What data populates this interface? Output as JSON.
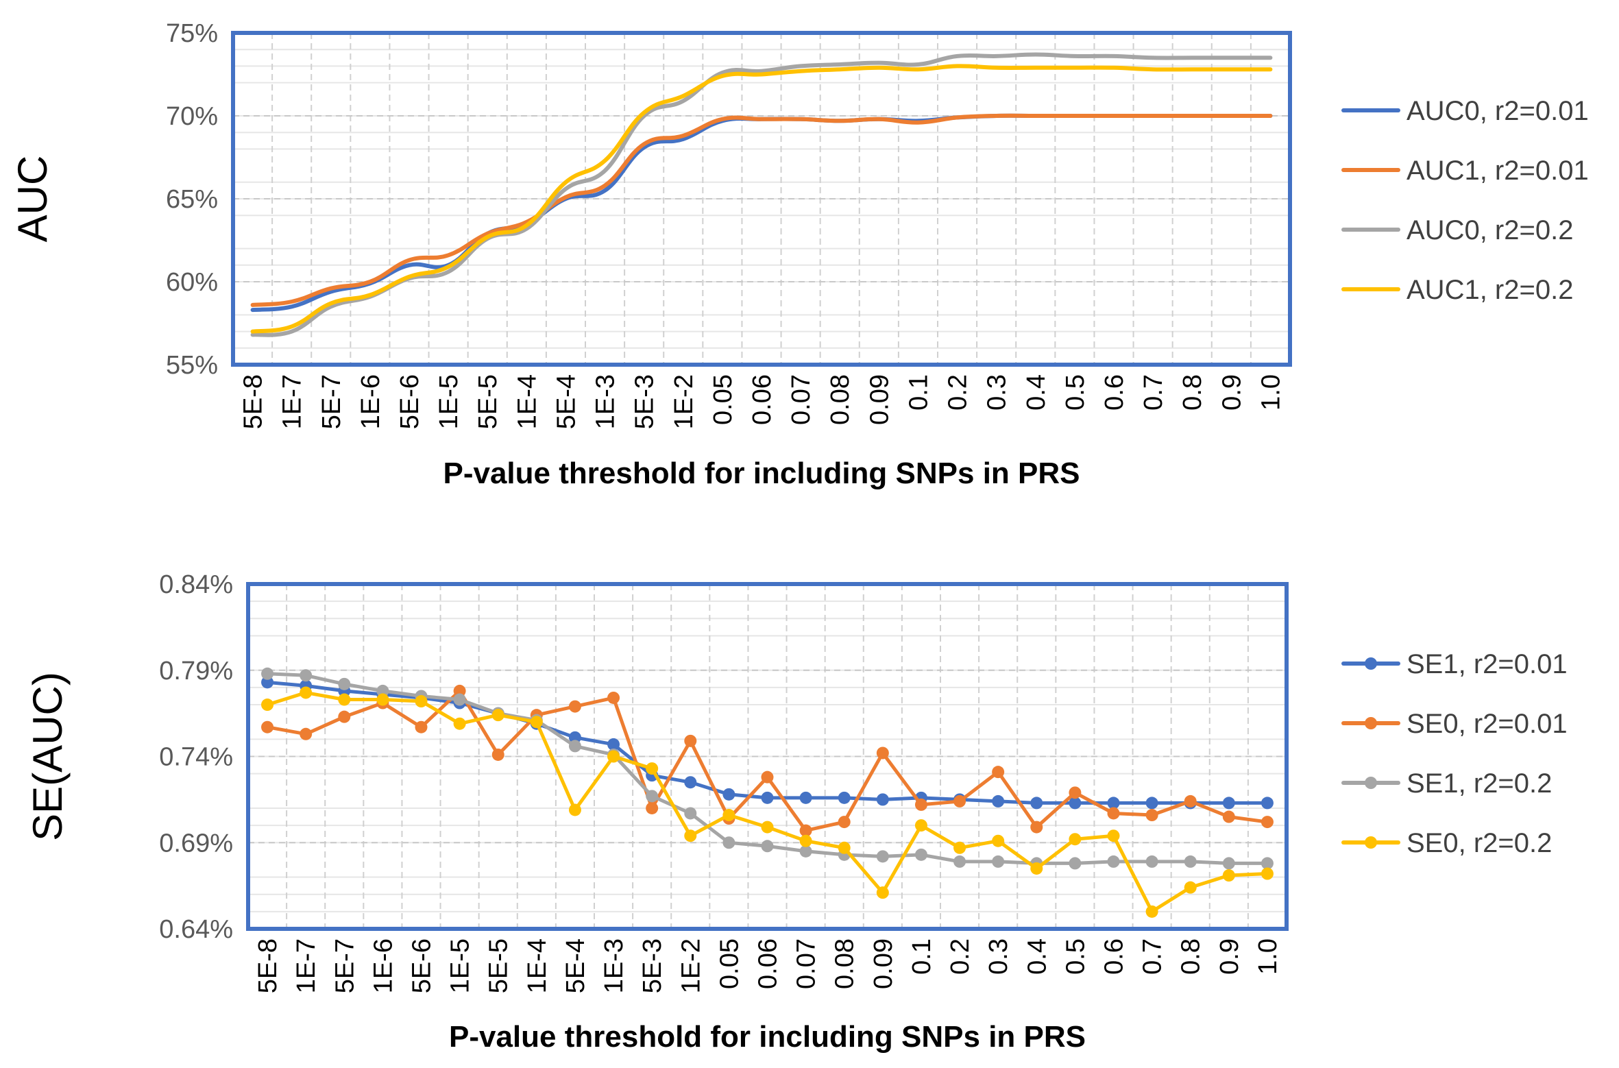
{
  "chart_data": [
    {
      "type": "line",
      "title": "",
      "xlabel": "P-value threshold for including SNPs in PRS",
      "ylabel": "AUC",
      "y_unit": "%",
      "ylim": [
        55,
        75
      ],
      "yticks": [
        55,
        60,
        65,
        70,
        75
      ],
      "ytick_labels": [
        "55%",
        "60%",
        "65%",
        "70%",
        "75%"
      ],
      "grid": true,
      "legend_position": "right",
      "markers": false,
      "categories": [
        "5E-8",
        "1E-7",
        "5E-7",
        "1E-6",
        "5E-6",
        "1E-5",
        "5E-5",
        "1E-4",
        "5E-4",
        "1E-3",
        "5E-3",
        "1E-2",
        "0.05",
        "0.06",
        "0.07",
        "0.08",
        "0.09",
        "0.1",
        "0.2",
        "0.3",
        "0.4",
        "0.5",
        "0.6",
        "0.7",
        "0.8",
        "0.9",
        "1.0"
      ],
      "series": [
        {
          "name": "AUC0, r2=0.01",
          "color": "#4472C4",
          "values": [
            58.3,
            58.5,
            59.4,
            59.9,
            61.0,
            61.0,
            62.9,
            63.5,
            65.0,
            65.5,
            68.1,
            68.6,
            69.7,
            69.8,
            69.8,
            69.7,
            69.8,
            69.7,
            69.9,
            70.0,
            70.0,
            70.0,
            70.0,
            70.0,
            70.0,
            70.0,
            70.0
          ]
        },
        {
          "name": "AUC1, r2=0.01",
          "color": "#ED7D31",
          "values": [
            58.6,
            58.8,
            59.6,
            60.0,
            61.3,
            61.6,
            62.9,
            63.6,
            65.1,
            65.8,
            68.3,
            68.8,
            69.8,
            69.8,
            69.8,
            69.7,
            69.8,
            69.6,
            69.9,
            70.0,
            70.0,
            70.0,
            70.0,
            70.0,
            70.0,
            70.0,
            70.0
          ]
        },
        {
          "name": "AUC0, r2=0.2",
          "color": "#A5A5A5",
          "values": [
            56.8,
            57.0,
            58.5,
            59.1,
            60.2,
            60.6,
            62.6,
            63.2,
            65.6,
            66.7,
            70.0,
            70.9,
            72.6,
            72.7,
            73.0,
            73.1,
            73.2,
            73.1,
            73.6,
            73.6,
            73.7,
            73.6,
            73.6,
            73.5,
            73.5,
            73.5,
            73.5
          ]
        },
        {
          "name": "AUC1, r2=0.2",
          "color": "#FFC000",
          "values": [
            57.0,
            57.3,
            58.7,
            59.2,
            60.3,
            60.9,
            62.7,
            63.4,
            66.0,
            67.3,
            70.2,
            71.2,
            72.4,
            72.5,
            72.7,
            72.8,
            72.9,
            72.8,
            73.0,
            72.9,
            72.9,
            72.9,
            72.9,
            72.8,
            72.8,
            72.8,
            72.8
          ]
        }
      ]
    },
    {
      "type": "line",
      "title": "",
      "xlabel": "P-value threshold for including SNPs in PRS",
      "ylabel": "SE(AUC)",
      "y_unit": "%",
      "ylim": [
        0.64,
        0.84
      ],
      "yticks": [
        0.64,
        0.69,
        0.74,
        0.79,
        0.84
      ],
      "ytick_labels": [
        "0.64%",
        "0.69%",
        "0.74%",
        "0.79%",
        "0.84%"
      ],
      "grid": true,
      "legend_position": "right",
      "markers": true,
      "categories": [
        "5E-8",
        "1E-7",
        "5E-7",
        "1E-6",
        "5E-6",
        "1E-5",
        "5E-5",
        "1E-4",
        "5E-4",
        "1E-3",
        "5E-3",
        "1E-2",
        "0.05",
        "0.06",
        "0.07",
        "0.08",
        "0.09",
        "0.1",
        "0.2",
        "0.3",
        "0.4",
        "0.5",
        "0.6",
        "0.7",
        "0.8",
        "0.9",
        "1.0"
      ],
      "series": [
        {
          "name": "SE1, r2=0.01",
          "color": "#4472C4",
          "values": [
            0.783,
            0.781,
            0.778,
            0.776,
            0.774,
            0.771,
            0.765,
            0.759,
            0.751,
            0.747,
            0.729,
            0.725,
            0.718,
            0.716,
            0.716,
            0.716,
            0.715,
            0.716,
            0.715,
            0.714,
            0.713,
            0.713,
            0.713,
            0.713,
            0.713,
            0.713,
            0.713
          ]
        },
        {
          "name": "SE0, r2=0.01",
          "color": "#ED7D31",
          "values": [
            0.757,
            0.753,
            0.763,
            0.771,
            0.757,
            0.778,
            0.741,
            0.764,
            0.769,
            0.774,
            0.71,
            0.749,
            0.704,
            0.728,
            0.697,
            0.702,
            0.742,
            0.712,
            0.714,
            0.731,
            0.699,
            0.719,
            0.707,
            0.706,
            0.714,
            0.705,
            0.702
          ]
        },
        {
          "name": "SE1, r2=0.2",
          "color": "#A5A5A5",
          "values": [
            0.788,
            0.787,
            0.782,
            0.778,
            0.775,
            0.773,
            0.765,
            0.761,
            0.746,
            0.741,
            0.717,
            0.707,
            0.69,
            0.688,
            0.685,
            0.683,
            0.682,
            0.683,
            0.679,
            0.679,
            0.678,
            0.678,
            0.679,
            0.679,
            0.679,
            0.678,
            0.678
          ]
        },
        {
          "name": "SE0, r2=0.2",
          "color": "#FFC000",
          "values": [
            0.77,
            0.777,
            0.773,
            0.773,
            0.772,
            0.759,
            0.764,
            0.76,
            0.709,
            0.74,
            0.733,
            0.694,
            0.706,
            0.699,
            0.691,
            0.687,
            0.661,
            0.7,
            0.687,
            0.691,
            0.675,
            0.692,
            0.694,
            0.65,
            0.664,
            0.671,
            0.672
          ]
        }
      ]
    }
  ]
}
